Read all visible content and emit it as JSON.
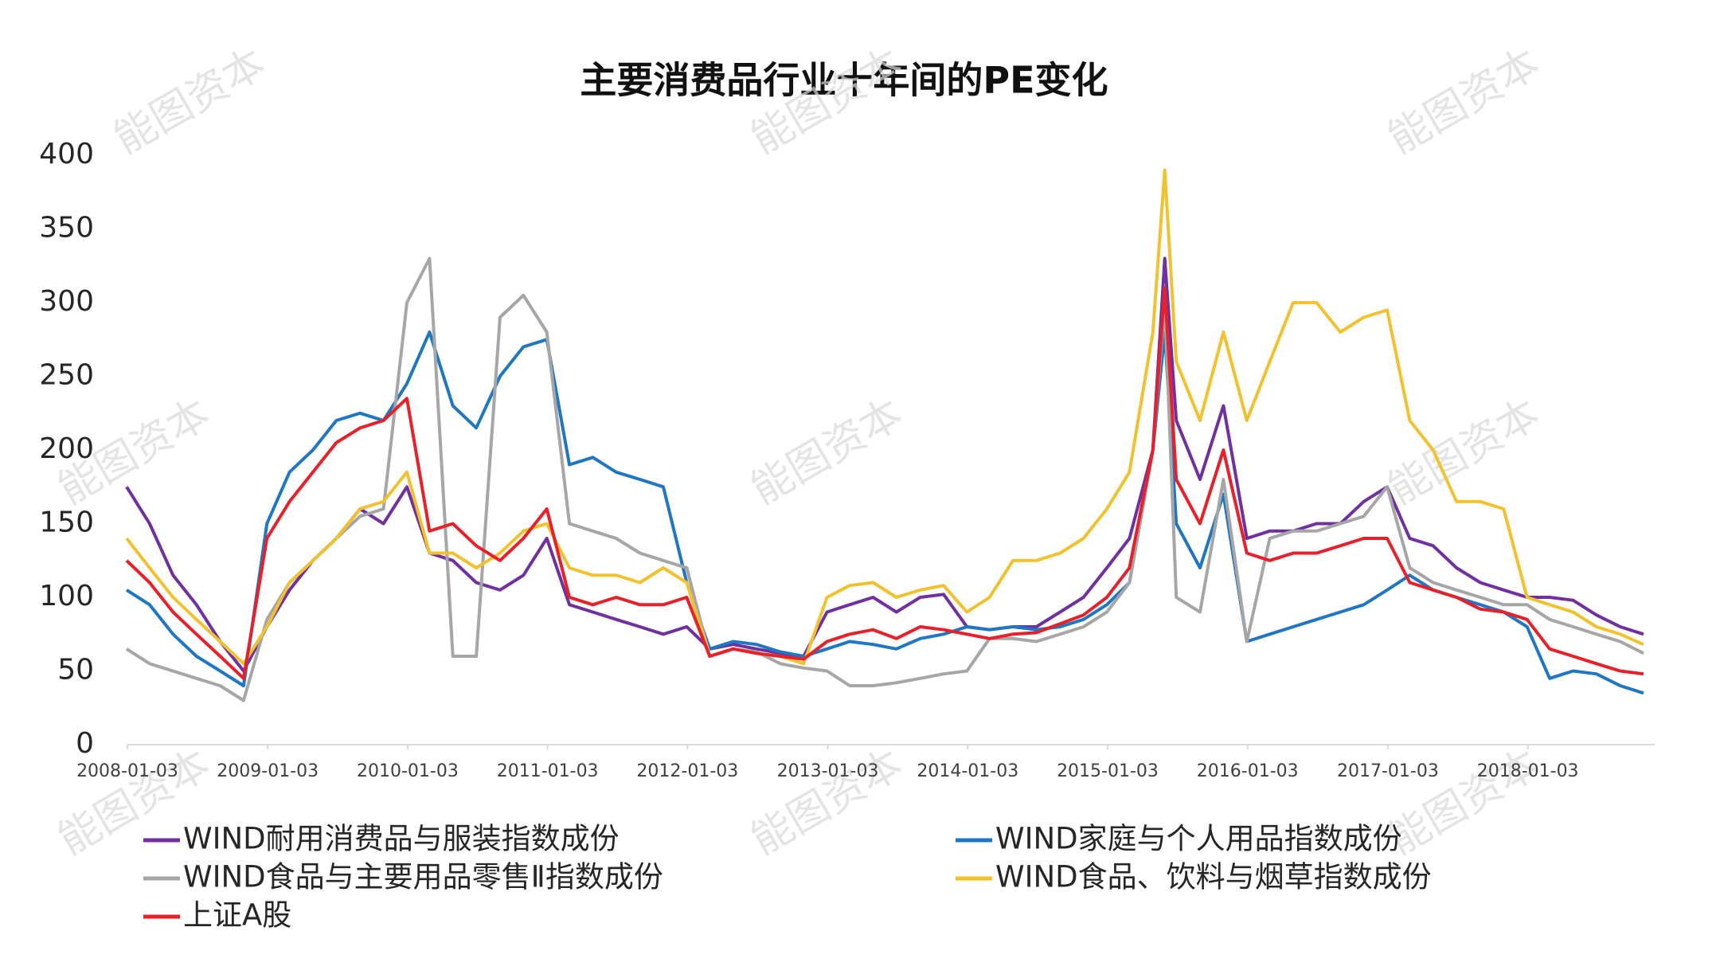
{
  "watermark": "能图资本",
  "chart_data": {
    "type": "line",
    "title": "主要消费品行业十年间的PE变化",
    "x": [
      "2008-01-01",
      "2008-03-01",
      "2008-05-01",
      "2008-07-01",
      "2008-09-01",
      "2008-11-01",
      "2009-01-01",
      "2009-03-01",
      "2009-05-01",
      "2009-07-01",
      "2009-09-01",
      "2009-11-01",
      "2010-01-01",
      "2010-03-01",
      "2010-05-01",
      "2010-07-01",
      "2010-09-01",
      "2010-11-01",
      "2011-01-01",
      "2011-03-01",
      "2011-05-01",
      "2011-07-01",
      "2011-09-01",
      "2011-11-01",
      "2012-01-01",
      "2012-03-01",
      "2012-05-01",
      "2012-07-01",
      "2012-09-01",
      "2012-11-01",
      "2013-01-01",
      "2013-03-01",
      "2013-05-01",
      "2013-07-01",
      "2013-09-01",
      "2013-11-01",
      "2014-01-01",
      "2014-03-01",
      "2014-05-01",
      "2014-07-01",
      "2014-09-01",
      "2014-11-01",
      "2015-01-01",
      "2015-03-01",
      "2015-05-01",
      "2015-06-01",
      "2015-07-01",
      "2015-09-01",
      "2015-11-01",
      "2016-01-01",
      "2016-03-01",
      "2016-05-01",
      "2016-07-01",
      "2016-09-01",
      "2016-11-01",
      "2017-01-01",
      "2017-03-01",
      "2017-05-01",
      "2017-07-01",
      "2017-09-01",
      "2017-11-01",
      "2018-01-01",
      "2018-03-01",
      "2018-05-01",
      "2018-07-01",
      "2018-09-01",
      "2018-11-01"
    ],
    "series": [
      {
        "name": "WIND耐用消费品与服装指数成份",
        "color": "#7030a0",
        "values": [
          175,
          150,
          115,
          95,
          70,
          50,
          80,
          105,
          125,
          140,
          160,
          150,
          175,
          130,
          125,
          110,
          105,
          115,
          140,
          95,
          90,
          85,
          80,
          75,
          80,
          65,
          68,
          65,
          62,
          60,
          90,
          95,
          100,
          90,
          100,
          102,
          80,
          78,
          80,
          80,
          90,
          100,
          120,
          140,
          200,
          330,
          220,
          180,
          230,
          140,
          145,
          145,
          150,
          150,
          165,
          175,
          140,
          135,
          120,
          110,
          105,
          100,
          100,
          98,
          88,
          80,
          75
        ]
      },
      {
        "name": "WIND家庭与个人用品指数成份",
        "color": "#1f77c4",
        "values": [
          105,
          95,
          75,
          60,
          50,
          40,
          150,
          185,
          200,
          220,
          225,
          220,
          245,
          280,
          230,
          215,
          250,
          270,
          275,
          190,
          195,
          185,
          180,
          175,
          110,
          65,
          70,
          68,
          63,
          60,
          65,
          70,
          68,
          65,
          72,
          75,
          80,
          78,
          80,
          78,
          80,
          85,
          95,
          110,
          200,
          280,
          150,
          120,
          170,
          70,
          75,
          80,
          85,
          90,
          95,
          105,
          115,
          105,
          100,
          95,
          90,
          80,
          45,
          50,
          48,
          40,
          35
        ]
      },
      {
        "name": "WIND食品与主要用品零售Ⅱ指数成份",
        "color": "#a6a6a6",
        "values": [
          65,
          55,
          50,
          45,
          40,
          30,
          85,
          110,
          125,
          140,
          155,
          160,
          300,
          330,
          60,
          60,
          290,
          305,
          280,
          150,
          145,
          140,
          130,
          125,
          120,
          60,
          65,
          63,
          55,
          52,
          50,
          40,
          40,
          42,
          45,
          48,
          50,
          72,
          72,
          70,
          75,
          80,
          90,
          110,
          200,
          300,
          100,
          90,
          180,
          70,
          140,
          145,
          145,
          150,
          155,
          175,
          120,
          110,
          105,
          100,
          95,
          95,
          85,
          80,
          75,
          70,
          62
        ]
      },
      {
        "name": "WIND食品、饮料与烟草指数成份",
        "color": "#f2c12e",
        "values": [
          140,
          120,
          100,
          85,
          70,
          55,
          80,
          110,
          125,
          140,
          160,
          165,
          185,
          130,
          130,
          120,
          130,
          145,
          150,
          120,
          115,
          115,
          110,
          120,
          110,
          60,
          65,
          62,
          60,
          55,
          100,
          108,
          110,
          100,
          105,
          108,
          90,
          100,
          125,
          125,
          130,
          140,
          160,
          185,
          280,
          390,
          260,
          220,
          280,
          220,
          260,
          300,
          300,
          280,
          290,
          295,
          220,
          200,
          165,
          165,
          160,
          100,
          95,
          90,
          80,
          75,
          68
        ]
      },
      {
        "name": "上证A股",
        "color": "#e8202a",
        "values": [
          125,
          110,
          90,
          75,
          60,
          45,
          140,
          165,
          185,
          205,
          215,
          220,
          235,
          145,
          150,
          135,
          125,
          140,
          160,
          100,
          95,
          100,
          95,
          95,
          100,
          60,
          65,
          62,
          60,
          58,
          70,
          75,
          78,
          72,
          80,
          78,
          75,
          72,
          75,
          76,
          82,
          88,
          100,
          120,
          200,
          310,
          180,
          150,
          200,
          130,
          125,
          130,
          130,
          135,
          140,
          140,
          110,
          105,
          100,
          92,
          90,
          85,
          65,
          60,
          55,
          50,
          48
        ]
      }
    ],
    "xlim": [
      "2008-01-03",
      "2018-11-30"
    ],
    "xticks": [
      "2008-01-03",
      "2009-01-03",
      "2010-01-03",
      "2011-01-03",
      "2012-01-03",
      "2013-01-03",
      "2014-01-03",
      "2015-01-03",
      "2016-01-03",
      "2017-01-03",
      "2018-01-03"
    ],
    "ylim": [
      0,
      400
    ],
    "yticks": [
      0,
      50,
      100,
      150,
      200,
      250,
      300,
      350,
      400
    ],
    "grid": false
  }
}
